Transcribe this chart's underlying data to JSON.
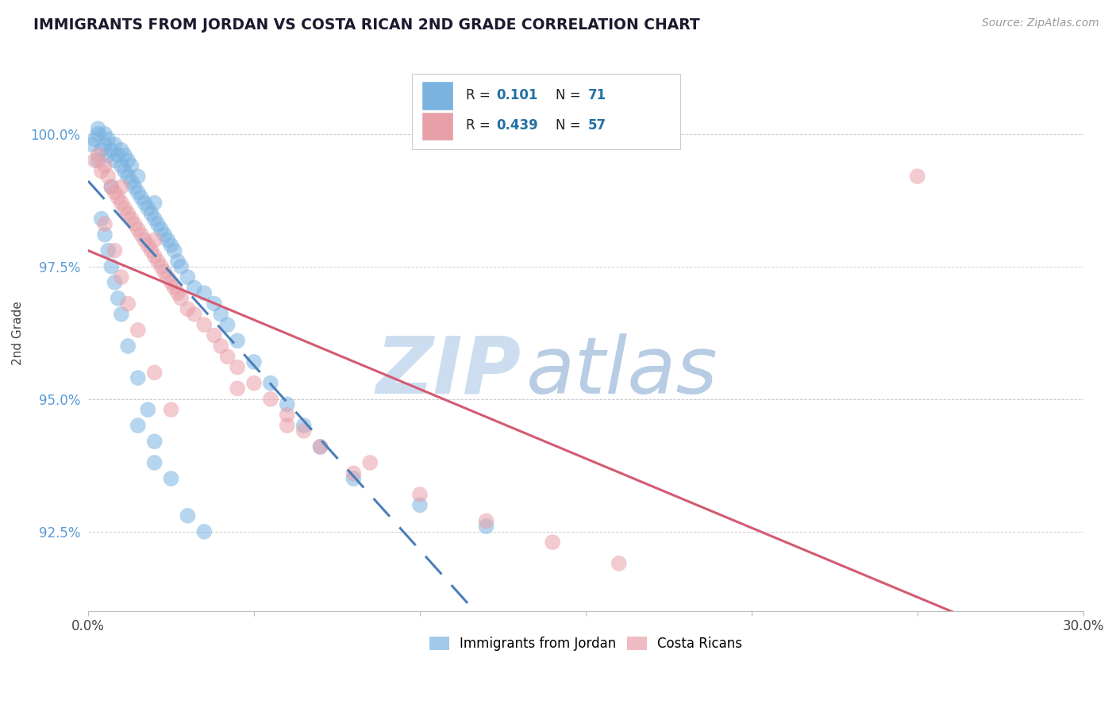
{
  "title": "IMMIGRANTS FROM JORDAN VS COSTA RICAN 2ND GRADE CORRELATION CHART",
  "source": "Source: ZipAtlas.com",
  "ylabel": "2nd Grade",
  "ytick_vals": [
    92.5,
    95.0,
    97.5,
    100.0
  ],
  "xlim": [
    0.0,
    30.0
  ],
  "ylim": [
    91.0,
    101.5
  ],
  "legend_blue_label": "Immigrants from Jordan",
  "legend_pink_label": "Costa Ricans",
  "R_blue": "0.101",
  "N_blue": "71",
  "R_pink": "0.439",
  "N_pink": "57",
  "blue_color": "#7ab3e0",
  "pink_color": "#e8a0a8",
  "trendline_blue_color": "#4a7fba",
  "trendline_pink_color": "#d45a72",
  "zip_color": "#ccddf0",
  "atlas_color": "#b8cce4"
}
